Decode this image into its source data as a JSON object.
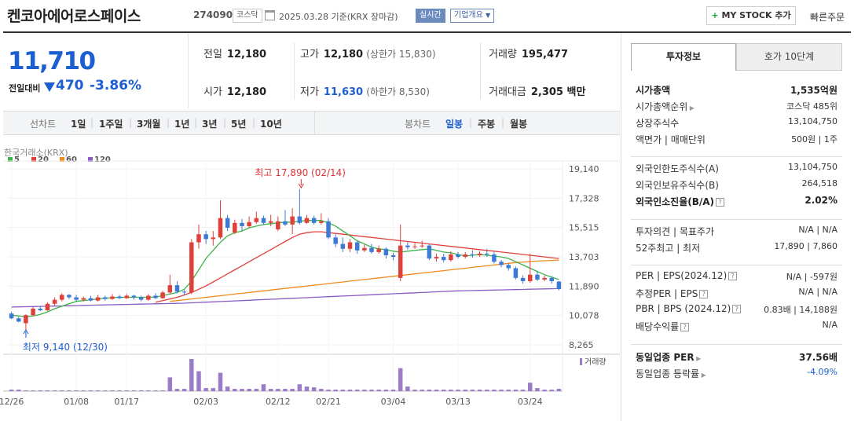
{
  "header": {
    "company": "켄코아에어로스페이스",
    "code": "274090",
    "market": "코스닥",
    "date_text": "2025.03.28  기준(KRX 장마감)",
    "realtime_label": "실시간",
    "company_info_label": "기업개요",
    "mystock_label": "MY STOCK 추가",
    "quick_order_label": "빠른주문"
  },
  "price": {
    "current": "11,710",
    "change_label": "전일대비",
    "change": "470",
    "percent": "-3.86%"
  },
  "info": {
    "prev_label": "전일",
    "prev": "12,180",
    "high_label": "고가",
    "high": "12,180",
    "upper_limit": "(상한가 15,830)",
    "volume_label": "거래량",
    "volume": "195,477",
    "open_label": "시가",
    "open": "12,180",
    "low_label": "저가",
    "low": "11,630",
    "lower_limit": "(하한가 8,530)",
    "amount_label": "거래대금",
    "amount": "2,305 백만"
  },
  "tabs": {
    "line_title": "선차트",
    "line_tabs": [
      "1일",
      "1주일",
      "3개월",
      "1년",
      "3년",
      "5년",
      "10년"
    ],
    "candle_title": "봉차트",
    "candle_tabs": [
      "일봉",
      "주봉",
      "월봉"
    ]
  },
  "chart_data": {
    "type": "candlestick",
    "source": "한국거래소(KRX)",
    "legend": [
      "5",
      "20",
      "60",
      "120"
    ],
    "legend_colors": [
      "#3db34a",
      "#e0403a",
      "#f08a1c",
      "#8a5cc2"
    ],
    "up_color": "#e0403a",
    "down_color": "#3d7ad6",
    "yticks": [
      "19,140",
      "17,328",
      "15,515",
      "13,703",
      "11,890",
      "10,078",
      "8,265"
    ],
    "ylim": [
      8265,
      19140
    ],
    "xticks": [
      "12/26",
      "01/08",
      "01/17",
      "02/03",
      "02/12",
      "02/21",
      "03/04",
      "03/13",
      "03/24"
    ],
    "max_label": "최고 17,890 (02/14)",
    "min_label": "최저 9,140 (12/30)",
    "volume_label": "거래량",
    "candles": [
      {
        "o": 10200,
        "c": 9900,
        "h": 10300,
        "l": 9850
      },
      {
        "o": 9900,
        "c": 9700,
        "h": 10000,
        "l": 9650
      },
      {
        "o": 9600,
        "c": 10100,
        "h": 10150,
        "l": 9140
      },
      {
        "o": 10100,
        "c": 10500,
        "h": 10600,
        "l": 10050
      },
      {
        "o": 10500,
        "c": 10400,
        "h": 10650,
        "l": 10350
      },
      {
        "o": 10400,
        "c": 10800,
        "h": 10900,
        "l": 10350
      },
      {
        "o": 10800,
        "c": 11050,
        "h": 11200,
        "l": 10700
      },
      {
        "o": 11050,
        "c": 11350,
        "h": 11450,
        "l": 10950
      },
      {
        "o": 11350,
        "c": 11200,
        "h": 11400,
        "l": 11100
      },
      {
        "o": 11200,
        "c": 11050,
        "h": 11350,
        "l": 10950
      },
      {
        "o": 11050,
        "c": 11150,
        "h": 11250,
        "l": 10950
      },
      {
        "o": 11150,
        "c": 11000,
        "h": 11300,
        "l": 10950
      },
      {
        "o": 11000,
        "c": 11200,
        "h": 11350,
        "l": 10950
      },
      {
        "o": 11200,
        "c": 11100,
        "h": 11300,
        "l": 11000
      },
      {
        "o": 11100,
        "c": 11250,
        "h": 11400,
        "l": 11050
      },
      {
        "o": 11250,
        "c": 11150,
        "h": 11350,
        "l": 11100
      },
      {
        "o": 11150,
        "c": 11300,
        "h": 11400,
        "l": 11100
      },
      {
        "o": 11300,
        "c": 11200,
        "h": 11350,
        "l": 11050
      },
      {
        "o": 11200,
        "c": 11050,
        "h": 11300,
        "l": 10950
      },
      {
        "o": 11050,
        "c": 11300,
        "h": 11400,
        "l": 11000
      },
      {
        "o": 11300,
        "c": 11150,
        "h": 11450,
        "l": 11100
      },
      {
        "o": 11150,
        "c": 11500,
        "h": 11600,
        "l": 11100
      },
      {
        "o": 11500,
        "c": 11950,
        "h": 12600,
        "l": 11400
      },
      {
        "o": 11950,
        "c": 11550,
        "h": 12200,
        "l": 11450
      },
      {
        "o": 11550,
        "c": 11500,
        "h": 11650,
        "l": 11300
      },
      {
        "o": 11500,
        "c": 14600,
        "h": 14800,
        "l": 11400
      },
      {
        "o": 14600,
        "c": 15100,
        "h": 15700,
        "l": 14200
      },
      {
        "o": 15100,
        "c": 14800,
        "h": 15300,
        "l": 14500
      },
      {
        "o": 14800,
        "c": 14900,
        "h": 15300,
        "l": 14400
      },
      {
        "o": 14900,
        "c": 16100,
        "h": 17200,
        "l": 14800
      },
      {
        "o": 16100,
        "c": 15500,
        "h": 16300,
        "l": 15300
      },
      {
        "o": 15200,
        "c": 15800,
        "h": 16000,
        "l": 15100
      },
      {
        "o": 15800,
        "c": 15600,
        "h": 16050,
        "l": 15300
      },
      {
        "o": 15600,
        "c": 15850,
        "h": 16200,
        "l": 15500
      },
      {
        "o": 15850,
        "c": 16100,
        "h": 16500,
        "l": 15750
      },
      {
        "o": 16100,
        "c": 15800,
        "h": 16250,
        "l": 15700
      },
      {
        "o": 15800,
        "c": 15900,
        "h": 16300,
        "l": 15600
      },
      {
        "o": 15400,
        "c": 15900,
        "h": 16200,
        "l": 15300
      },
      {
        "o": 15900,
        "c": 15700,
        "h": 16600,
        "l": 15600
      },
      {
        "o": 15700,
        "c": 16200,
        "h": 16700,
        "l": 15100
      },
      {
        "o": 16200,
        "c": 15800,
        "h": 17890,
        "l": 15700
      },
      {
        "o": 15800,
        "c": 16100,
        "h": 16300,
        "l": 15750
      },
      {
        "o": 16100,
        "c": 15800,
        "h": 16250,
        "l": 15700
      },
      {
        "o": 15800,
        "c": 15900,
        "h": 16400,
        "l": 15700
      },
      {
        "o": 15900,
        "c": 14900,
        "h": 16100,
        "l": 14800
      },
      {
        "o": 14900,
        "c": 14500,
        "h": 15100,
        "l": 14300
      },
      {
        "o": 14500,
        "c": 14200,
        "h": 14900,
        "l": 14000
      },
      {
        "o": 14200,
        "c": 14600,
        "h": 14800,
        "l": 14000
      },
      {
        "o": 14600,
        "c": 14100,
        "h": 14700,
        "l": 13900
      },
      {
        "o": 14100,
        "c": 14250,
        "h": 14450,
        "l": 14000
      },
      {
        "o": 14250,
        "c": 14000,
        "h": 14500,
        "l": 13900
      },
      {
        "o": 14000,
        "c": 14200,
        "h": 14400,
        "l": 13900
      },
      {
        "o": 14200,
        "c": 13800,
        "h": 14300,
        "l": 13600
      },
      {
        "o": 13800,
        "c": 13700,
        "h": 13950,
        "l": 13500
      },
      {
        "o": 12400,
        "c": 14400,
        "h": 15700,
        "l": 12200
      },
      {
        "o": 14400,
        "c": 14300,
        "h": 14600,
        "l": 14150
      },
      {
        "o": 14300,
        "c": 14350,
        "h": 14550,
        "l": 14200
      },
      {
        "o": 14350,
        "c": 14400,
        "h": 14700,
        "l": 14250
      },
      {
        "o": 14400,
        "c": 13600,
        "h": 14500,
        "l": 13500
      },
      {
        "o": 13600,
        "c": 13700,
        "h": 13900,
        "l": 13400
      },
      {
        "o": 13700,
        "c": 13500,
        "h": 13900,
        "l": 13350
      },
      {
        "o": 13500,
        "c": 13850,
        "h": 14050,
        "l": 13400
      },
      {
        "o": 13850,
        "c": 13700,
        "h": 14000,
        "l": 13600
      },
      {
        "o": 13700,
        "c": 13850,
        "h": 14000,
        "l": 13600
      },
      {
        "o": 13850,
        "c": 13800,
        "h": 14100,
        "l": 13650
      },
      {
        "o": 13800,
        "c": 13900,
        "h": 14050,
        "l": 13700
      },
      {
        "o": 13900,
        "c": 13850,
        "h": 14200,
        "l": 13700
      },
      {
        "o": 13850,
        "c": 13400,
        "h": 14000,
        "l": 13300
      },
      {
        "o": 13400,
        "c": 13200,
        "h": 13500,
        "l": 13050
      },
      {
        "o": 13200,
        "c": 13000,
        "h": 13300,
        "l": 12850
      },
      {
        "o": 13000,
        "c": 12400,
        "h": 13100,
        "l": 12300
      },
      {
        "o": 12400,
        "c": 12200,
        "h": 12550,
        "l": 12050
      },
      {
        "o": 12200,
        "c": 12600,
        "h": 13900,
        "l": 12100
      },
      {
        "o": 12600,
        "c": 12300,
        "h": 12800,
        "l": 12200
      },
      {
        "o": 12300,
        "c": 12400,
        "h": 12550,
        "l": 12200
      },
      {
        "o": 12400,
        "c": 12200,
        "h": 12500,
        "l": 12050
      },
      {
        "o": 12180,
        "c": 11710,
        "h": 12180,
        "l": 11630
      }
    ],
    "volumes": [
      2,
      2,
      1,
      1,
      1,
      1,
      1,
      1,
      1,
      1,
      1,
      1,
      1,
      1,
      1,
      1,
      1,
      1,
      1,
      1,
      1,
      1,
      18,
      3,
      3,
      42,
      26,
      4,
      4,
      24,
      6,
      3,
      3,
      3,
      3,
      9,
      3,
      3,
      3,
      3,
      9,
      6,
      5,
      3,
      2,
      2,
      2,
      2,
      2,
      2,
      2,
      2,
      2,
      2,
      30,
      6,
      2,
      2,
      2,
      2,
      2,
      2,
      2,
      2,
      2,
      2,
      2,
      2,
      2,
      2,
      2,
      2,
      11,
      4,
      2,
      2,
      3
    ],
    "ma5": [
      10100,
      10050,
      10000,
      10050,
      10150,
      10300,
      10500,
      10650,
      10800,
      10950,
      11000,
      11050,
      11100,
      11150,
      11180,
      11200,
      11200,
      11200,
      11200,
      11200,
      11220,
      11300,
      11400,
      11500,
      11700,
      12200,
      12900,
      13600,
      14100,
      14600,
      15000,
      15200,
      15300,
      15500,
      15600,
      15700,
      15750,
      15800,
      15850,
      15850,
      15900,
      15950,
      15950,
      15950,
      15800,
      15600,
      15300,
      15000,
      14700,
      14500,
      14300,
      14200,
      14150,
      14050,
      14000,
      14050,
      14100,
      14150,
      14200,
      14100,
      14000,
      13950,
      13850,
      13750,
      13800,
      13850,
      13800,
      13750,
      13700,
      13600,
      13400,
      13200,
      13000,
      12800,
      12600,
      12450,
      12300
    ],
    "ma20": [
      null,
      null,
      null,
      null,
      null,
      null,
      null,
      null,
      null,
      null,
      null,
      null,
      null,
      null,
      null,
      null,
      null,
      null,
      null,
      null,
      10900,
      11000,
      11100,
      11200,
      11350,
      11500,
      11700,
      11900,
      12150,
      12400,
      12650,
      12900,
      13150,
      13400,
      13650,
      13900,
      14150,
      14400,
      14650,
      14900,
      15100,
      15200,
      15250,
      15250,
      15200,
      15150,
      15100,
      15050,
      15000,
      14950,
      14900,
      14850,
      14800,
      14750,
      14700,
      14650,
      14600,
      14550,
      14500,
      14450,
      14400,
      14350,
      14300,
      14250,
      14200,
      14150,
      14100,
      14050,
      14000,
      13950,
      13900,
      13850,
      13800,
      13750,
      13700,
      13650,
      13600
    ],
    "ma60": [
      null,
      null,
      null,
      null,
      null,
      null,
      null,
      null,
      null,
      null,
      null,
      null,
      null,
      null,
      null,
      null,
      null,
      null,
      null,
      null,
      null,
      null,
      10950,
      11000,
      11050,
      11100,
      11150,
      11200,
      11250,
      11300,
      11350,
      11400,
      11450,
      11500,
      11550,
      11600,
      11650,
      11700,
      11750,
      11800,
      11850,
      11900,
      11950,
      12000,
      12050,
      12100,
      12150,
      12200,
      12250,
      12300,
      12350,
      12400,
      12450,
      12500,
      12550,
      12600,
      12650,
      12700,
      12750,
      12800,
      12850,
      12900,
      12950,
      13000,
      13050,
      13100,
      13150,
      13200,
      13250,
      13300,
      13350,
      13380,
      13410,
      13440,
      13460,
      13480,
      13500
    ],
    "ma120": [
      10600,
      10610,
      10620,
      10630,
      10640,
      10650,
      10660,
      10670,
      10680,
      10690,
      10700,
      10710,
      10720,
      10730,
      10740,
      10750,
      10760,
      10770,
      10780,
      10790,
      10800,
      10810,
      10820,
      10830,
      10840,
      10860,
      10880,
      10900,
      10920,
      10940,
      10960,
      10980,
      11000,
      11020,
      11040,
      11060,
      11080,
      11100,
      11120,
      11140,
      11160,
      11180,
      11200,
      11220,
      11240,
      11260,
      11280,
      11300,
      11320,
      11340,
      11360,
      11380,
      11400,
      11420,
      11440,
      11460,
      11480,
      11500,
      11520,
      11540,
      11560,
      11580,
      11600,
      11610,
      11620,
      11630,
      11640,
      11650,
      11660,
      11670,
      11680,
      11690,
      11700,
      11710,
      11720,
      11730,
      11740
    ]
  },
  "investment": {
    "tab_active": "투자정보",
    "tab_other": "호가 10단계",
    "rows1": [
      {
        "label": "시가총액",
        "value": "1,535억원",
        "bold": true
      },
      {
        "label": "시가총액순위",
        "value": "코스닥 485위",
        "arrow": true
      },
      {
        "label": "상장주식수",
        "value": "13,104,750"
      },
      {
        "label": "액면가 | 매매단위",
        "value": "500원 | 1주"
      }
    ],
    "rows2": [
      {
        "label": "외국인한도주식수(A)",
        "value": "13,104,750"
      },
      {
        "label": "외국인보유주식수(B)",
        "value": "264,518"
      },
      {
        "label": "외국인소진율(B/A)",
        "value": "2.02%",
        "bold": true,
        "qm": true
      }
    ],
    "rows3": [
      {
        "label": "투자의견 | 목표주가",
        "value": "N/A | N/A"
      },
      {
        "label": "52주최고 | 최저",
        "value": "17,890 | 7,860"
      }
    ],
    "rows4": [
      {
        "label": "PER | EPS(2024.12)",
        "value": "N/A | -597원",
        "qm": true
      },
      {
        "label": "추정PER | EPS",
        "value": "N/A | N/A",
        "qm": true
      },
      {
        "label": "PBR | BPS (2024.12)",
        "value": "0.83배 | 14,188원",
        "qm": true
      },
      {
        "label": "배당수익률",
        "value": "N/A",
        "qm": true
      }
    ],
    "rows5": [
      {
        "label": "동일업종 PER",
        "value": "37.56배",
        "bold": true,
        "arrow": true
      },
      {
        "label": "동일업종 등락률",
        "value": "-4.09%",
        "blue": true,
        "arrow": true
      }
    ]
  }
}
